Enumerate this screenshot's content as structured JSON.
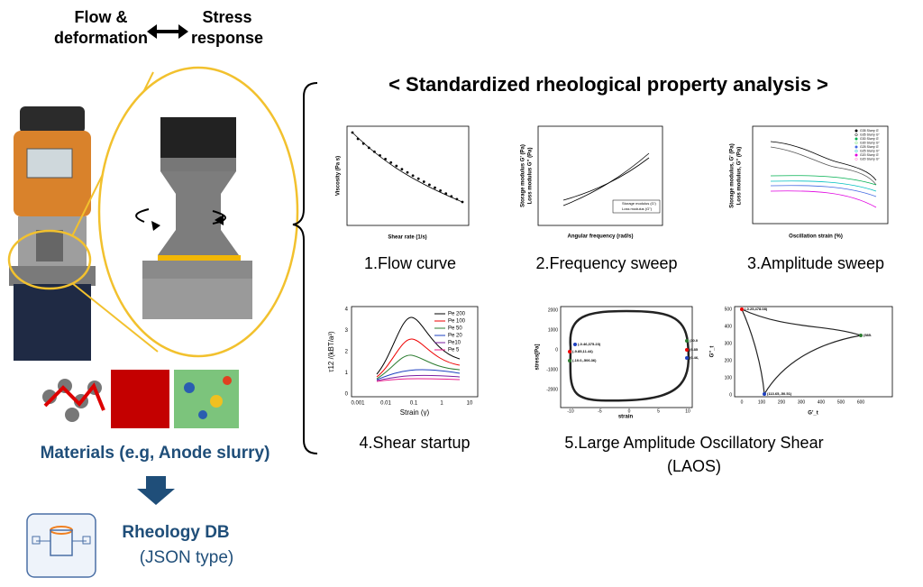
{
  "header": {
    "left": [
      "Flow &",
      "deformation"
    ],
    "right": [
      "Stress",
      "response"
    ]
  },
  "section_title": "< Standardized rheological property analysis >",
  "panels": [
    {
      "label": "1.Flow curve",
      "x_label": "Shear rate (1/s)",
      "y_label": "Viscosity (Pa s)"
    },
    {
      "label": "2.Frequency sweep",
      "x_label": "Angular frequency (rad/s)",
      "y_label": [
        "Storage modulus G' (Pa)",
        "Loss modulus G'' (Pa)"
      ],
      "legend": [
        "Storage modulus (G')",
        "Loss modulus (G'')"
      ]
    },
    {
      "label": "3.Amplitude sweep",
      "x_label": "Oscillation strain (%)",
      "y_label": [
        "Storage modulus, G' (Pa)",
        "Loss modulus, G'' (Pa)"
      ],
      "legend": [
        "G35 Slurry G'",
        "G35 Slurry G''",
        "G30 Slurry G'",
        "G30 Slurry G''",
        "G25 Slurry G'",
        "G25 Slurry G''",
        "G20 Slurry G'",
        "G20 Slurry G''"
      ]
    },
    {
      "label": "4.Shear startup",
      "x_label": "Strain (γ)",
      "y_label": "τ12 /(kBT/a³)",
      "x_ticks": [
        "0.001",
        "0.01",
        "0.1",
        "1",
        "10"
      ],
      "y_ticks": [
        "0",
        "1",
        "2",
        "3",
        "4"
      ],
      "legend": [
        "Pe 200",
        "Pe 100",
        "Pe 50",
        "Pe 20",
        "Pe10",
        "Pe 5"
      ]
    },
    {
      "label": [
        "5.Large Amplitude Oscillatory Shear",
        "(LAOS)"
      ],
      "left": {
        "x_label": "strain",
        "y_label": "stress[Pa]",
        "x_ticks": [
          "-10",
          "-5",
          "0",
          "5",
          "10"
        ],
        "y_ticks": [
          "-2000",
          "-1000",
          "0",
          "1000",
          "2000"
        ],
        "annotations": [
          "(-0.46,375.23)",
          "(-9.85,11.44)",
          "(-10.0,-506.36)",
          "(10.0",
          "(9.85",
          "(0.46,"
        ]
      },
      "right": {
        "x_label": "G'_t",
        "y_label": "G''_t",
        "x_ticks": [
          "0",
          "100",
          "200",
          "300",
          "400",
          "500",
          "600"
        ],
        "y_ticks": [
          "0",
          "100",
          "200",
          "300",
          "400",
          "500"
        ],
        "annotations": [
          "(-0.25,478.08)",
          "(585.",
          "(113.65,-50.51)"
        ]
      }
    }
  ],
  "materials": "Materials (e.g, Anode slurry)",
  "database": {
    "title": "Rheology DB",
    "subtitle": "(JSON type)"
  }
}
